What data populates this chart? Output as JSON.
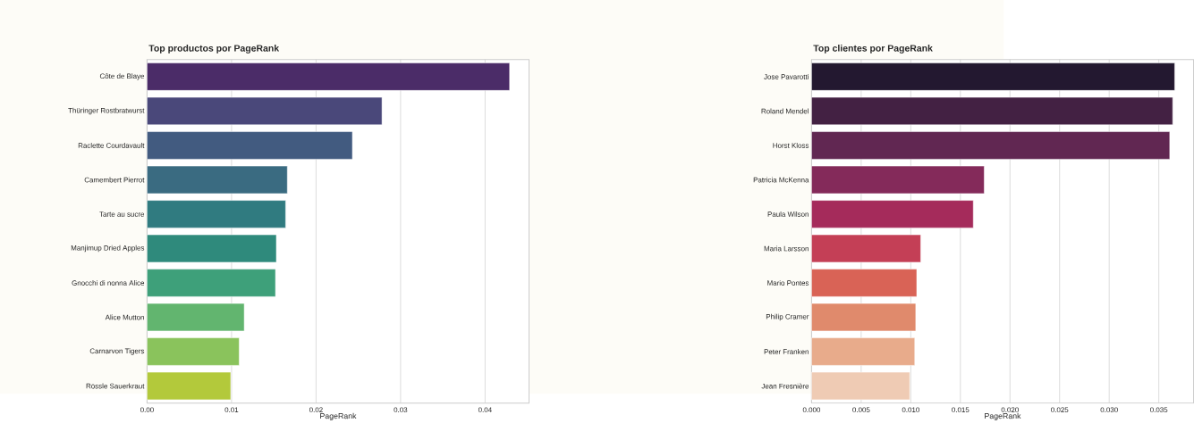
{
  "chart_data": [
    {
      "type": "bar",
      "orientation": "horizontal",
      "title": "Top productos por PageRank",
      "xlabel": "PageRank",
      "categories": [
        "Côte de Blaye",
        "Thüringer Rostbratwurst",
        "Raclette Courdavault",
        "Camembert Pierrot",
        "Tarte au sucre",
        "Manjimup Dried Apples",
        "Gnocchi di nonna Alice",
        "Alice Mutton",
        "Carnarvon Tigers",
        "Rössle Sauerkraut"
      ],
      "values": [
        0.0429,
        0.0278,
        0.0243,
        0.0166,
        0.0164,
        0.0153,
        0.0152,
        0.0115,
        0.0109,
        0.0099
      ],
      "colors": [
        "#4b2c68",
        "#4a487a",
        "#425b80",
        "#3a6b81",
        "#307b80",
        "#2f8a7c",
        "#3ea07a",
        "#62b56f",
        "#8ac35c",
        "#b3c93b"
      ],
      "xlim": [
        0,
        0.0452
      ],
      "xticks": [
        {
          "value": 0,
          "label": "0.00"
        },
        0.01,
        0.02,
        0.03,
        0.04
      ],
      "grid": "x"
    },
    {
      "type": "bar",
      "orientation": "horizontal",
      "title": "Top clientes por PageRank",
      "xlabel": "PageRank",
      "categories": [
        "Jose Pavarotti",
        "Roland Mendel",
        "Horst Kloss",
        "Patricia McKenna",
        "Paula Wilson",
        "Maria Larsson",
        "Mario Pontes",
        "Philip Cramer",
        "Peter Franken",
        "Jean Fresnière"
      ],
      "values": [
        0.0366,
        0.0364,
        0.0361,
        0.0174,
        0.0163,
        0.011,
        0.0106,
        0.0105,
        0.0104,
        0.0099
      ],
      "colors": [
        "#231830",
        "#432143",
        "#612752",
        "#842a5a",
        "#a52b5b",
        "#c43f56",
        "#d96356",
        "#e08a6c",
        "#e8ab8b",
        "#efcbb4"
      ],
      "xlim": [
        0,
        0.0385
      ],
      "xticks": [
        {
          "value": 0,
          "label": "0.000"
        },
        0.005,
        {
          "value": 0.01,
          "label": "0.010"
        },
        0.015,
        {
          "value": 0.02,
          "label": "0.020"
        },
        0.025,
        {
          "value": 0.03,
          "label": "0.030"
        },
        0.035
      ],
      "grid": "x"
    }
  ]
}
